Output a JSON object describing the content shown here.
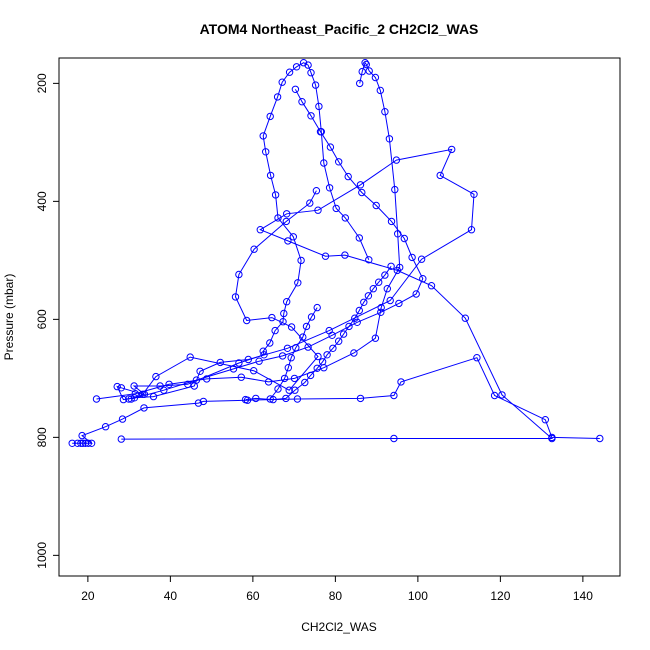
{
  "chart_data": {
    "type": "line",
    "title": "ATOM4 Northeast_Pacific_2 CH2Cl2_WAS",
    "xlabel": "CH2Cl2_WAS",
    "ylabel": "Pressure (mbar)",
    "xlim": [
      13,
      149
    ],
    "ylim": [
      1035,
      157
    ],
    "y_reversed": true,
    "xticks": [
      20,
      40,
      60,
      80,
      100,
      120,
      140
    ],
    "yticks": [
      200,
      400,
      600,
      800,
      1000
    ],
    "grid": false,
    "legend": "none",
    "color": "#0000ff",
    "series": [
      {
        "x": [
          16.2,
          17.5,
          18.3,
          18.8,
          19.4,
          20.1,
          20.9,
          18.6,
          24.3,
          28.4,
          33.6,
          46.8,
          48.0,
          58.7,
          70.8,
          86.1,
          94.2,
          95.9,
          114.3,
          118.6,
          130.9,
          132.5,
          144.1
        ],
        "y": [
          810,
          810,
          810,
          810,
          810,
          810,
          810,
          797,
          782,
          769,
          750,
          742,
          739,
          737,
          735,
          734,
          729,
          706,
          665,
          729,
          770,
          800,
          802
        ]
      },
      {
        "x": [
          28.1,
          94.2,
          132.5,
          120.4,
          111.5,
          103.3,
          95.0,
          82.3,
          77.6,
          68.5,
          61.8,
          68.2,
          75.8,
          86.1,
          94.8,
          108.2,
          105.4,
          113.6,
          113.0,
          100.9,
          93.3,
          78.5,
          68.4,
          58.9,
          52.1,
          47.2,
          45.8,
          35.9,
          31.3,
          28.6,
          27.1,
          28.1,
          33.3,
          36.5,
          44.8,
          60.2,
          68.8,
          75.8,
          69.4,
          64.6,
          58.5,
          55.8,
          56.6,
          60.3,
          68.1,
          73.8,
          75.4
        ],
        "y": [
          803,
          802,
          802,
          728,
          598,
          543,
          517,
          491,
          493,
          467,
          448,
          421,
          415,
          372,
          330,
          312,
          356,
          388,
          448,
          498,
          568,
          619,
          649,
          668,
          673,
          688,
          713,
          731,
          733,
          736,
          714,
          716,
          727,
          697,
          664,
          687,
          720,
          663,
          613,
          597,
          602,
          562,
          524,
          481,
          434,
          403,
          382
        ]
      },
      {
        "x": [
          29.9,
          33.7,
          31.2,
          37.5,
          44.2,
          56.6,
          62.7,
          62.5,
          64.1,
          65.4,
          67.3,
          67.5,
          68.2,
          70.9,
          71.7,
          69.8,
          66.1,
          65.5,
          64.3,
          63.1,
          62.5,
          64.2,
          66.0,
          67.1,
          68.9,
          70.6,
          72.3,
          73.4,
          74.1,
          75.2,
          76.0,
          76.6,
          77.2,
          78.6,
          80.2,
          82.4,
          85.8,
          88.1
        ],
        "y": [
          735,
          727,
          713,
          713,
          710,
          674,
          660,
          654,
          640,
          619,
          604,
          590,
          570,
          538,
          500,
          460,
          428,
          389,
          356,
          316,
          289,
          256,
          223,
          198,
          181,
          172,
          165,
          169,
          182,
          203,
          239,
          282,
          335,
          377,
          412,
          428,
          462,
          499
        ]
      },
      {
        "x": [
          22.1,
          31.5,
          39.7,
          48.8,
          57.2,
          63.8,
          70.1,
          77.2,
          84.5,
          89.7,
          91.1,
          92.6,
          95.6,
          95.1,
          94.4,
          93.1,
          92.0,
          90.9,
          89.7,
          88.2,
          87.5,
          87.2,
          86.5,
          85.9
        ],
        "y": [
          735,
          726,
          710,
          701,
          698,
          706,
          700,
          682,
          657,
          632,
          580,
          548,
          512,
          455,
          380,
          294,
          248,
          212,
          190,
          179,
          168,
          165,
          180,
          200
        ]
      },
      {
        "x": [
          30.5,
          38.4,
          46.3,
          55.3,
          61.5,
          67.2,
          73.4,
          79.2,
          85.3,
          91.0,
          95.4,
          99.6,
          101.2,
          98.6,
          96.7,
          93.6,
          89.9,
          86.4,
          83.1,
          80.8,
          78.8,
          76.4,
          74.1,
          71.9,
          70.3
        ],
        "y": [
          735,
          720,
          703,
          684,
          671,
          662,
          647,
          627,
          605,
          588,
          573,
          557,
          531,
          495,
          463,
          434,
          407,
          385,
          358,
          333,
          308,
          282,
          255,
          231,
          210
        ]
      },
      {
        "x": [
          58.2,
          60.7,
          64.9,
          68.0,
          70.2,
          72.6,
          74.0,
          75.6,
          76.9,
          78.0,
          79.4,
          80.8,
          82.0,
          83.3,
          84.7,
          85.8,
          86.9,
          88.0,
          89.2,
          90.5,
          92.0,
          93.5
        ],
        "y": [
          736,
          734,
          736,
          734,
          720,
          707,
          695,
          683,
          672,
          660,
          649,
          637,
          625,
          612,
          598,
          585,
          571,
          560,
          548,
          537,
          525,
          510
        ]
      },
      {
        "x": [
          64.2,
          66.1,
          67.7,
          68.6,
          69.3,
          70.4,
          72.1,
          73.0,
          74.2,
          75.6
        ],
        "y": [
          735,
          718,
          700,
          682,
          665,
          648,
          630,
          612,
          596,
          580
        ]
      }
    ]
  }
}
